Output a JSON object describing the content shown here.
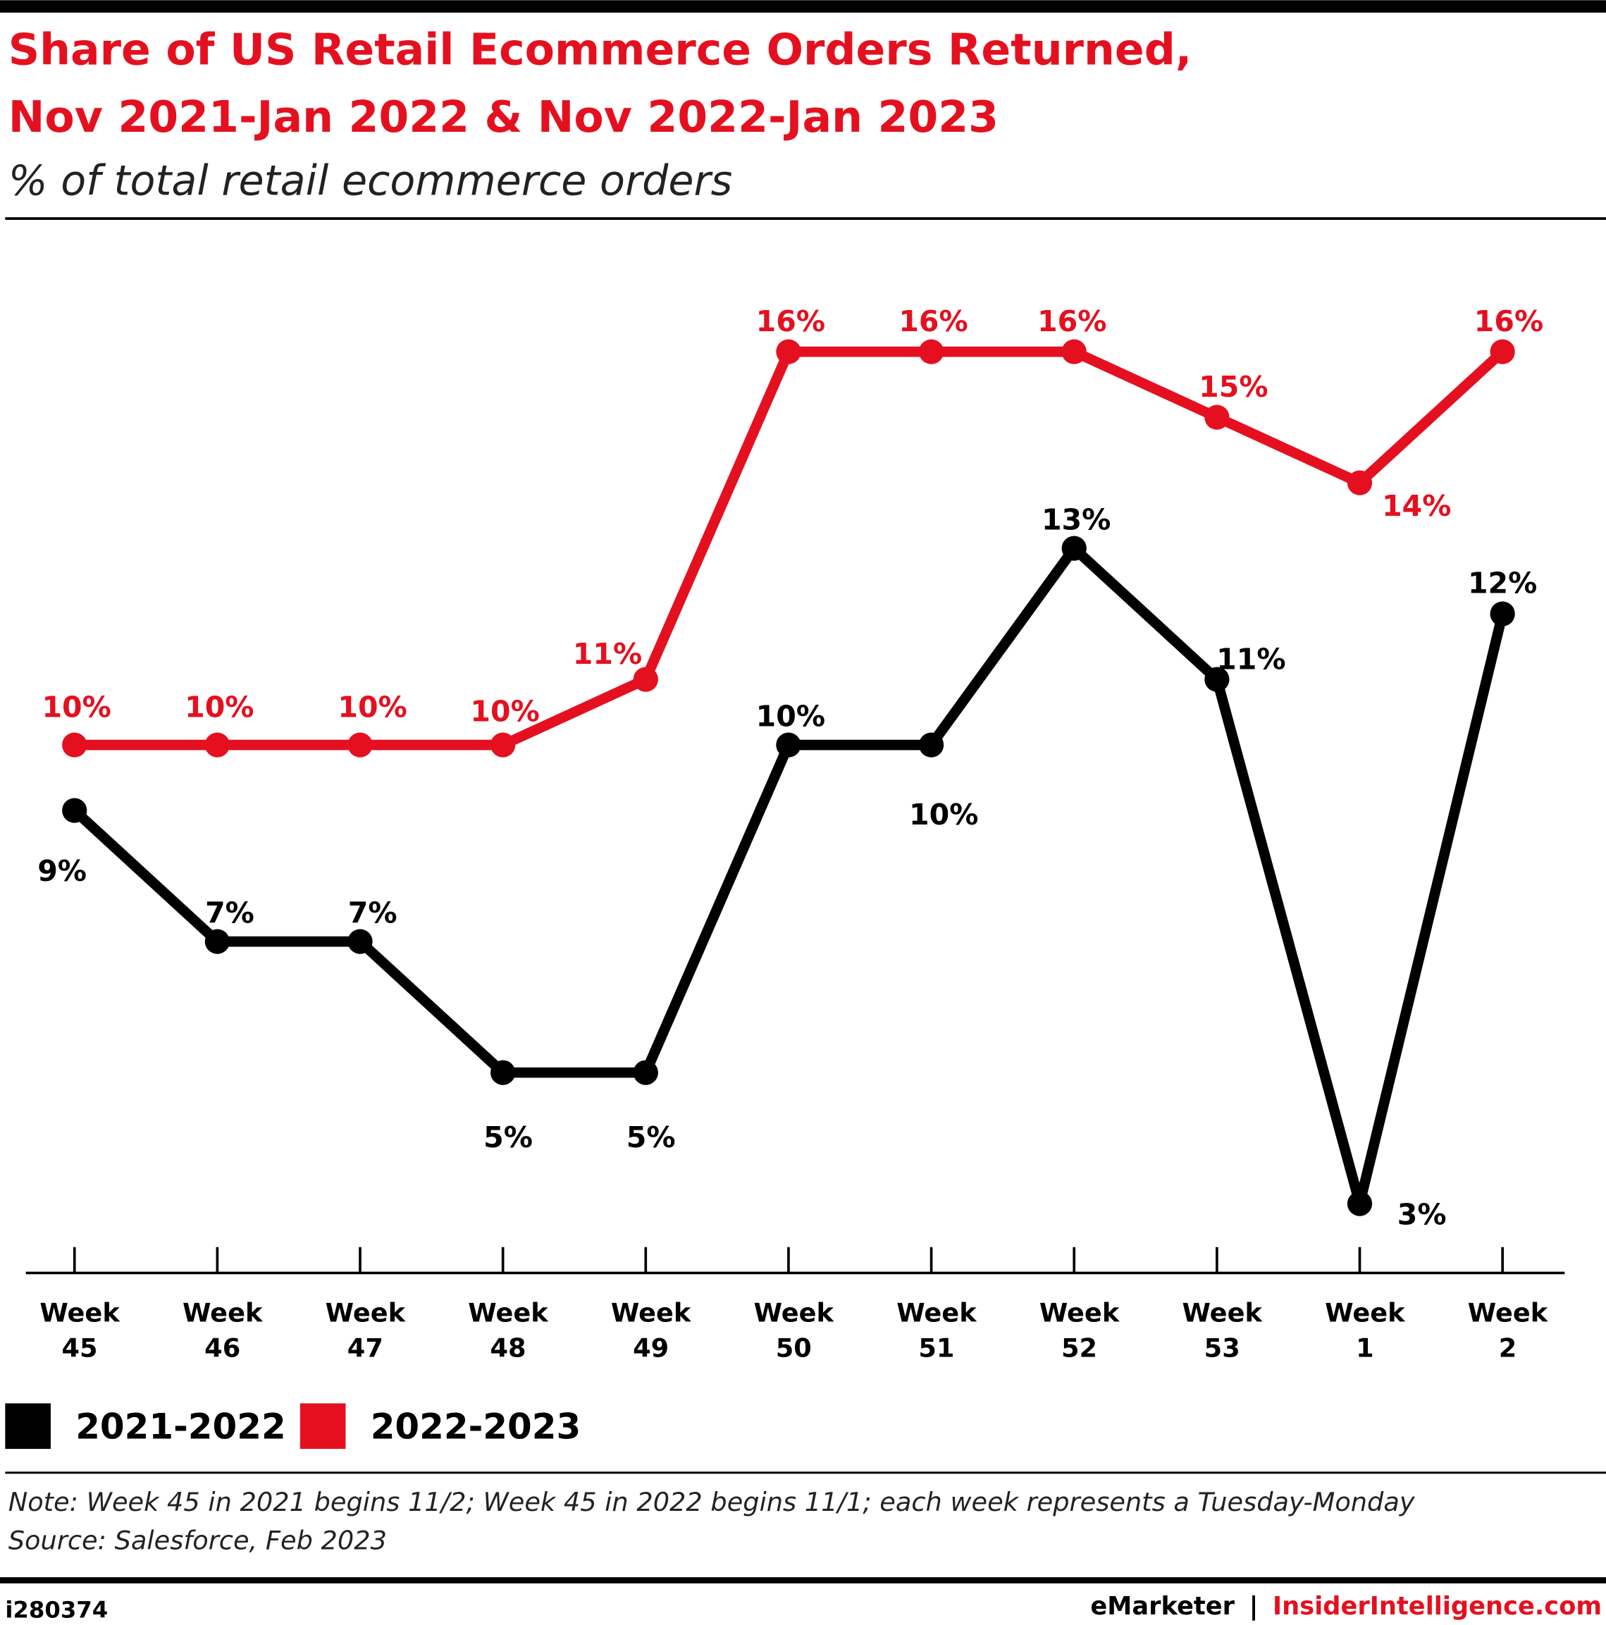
{
  "chart_data": {
    "type": "line",
    "title": [
      "Share of US Retail Ecommerce Orders Returned,",
      "Nov 2021-Jan 2022 & Nov 2022-Jan 2023"
    ],
    "subtitle": "% of total retail ecommerce orders",
    "categories": [
      "Week 45",
      "Week 46",
      "Week 47",
      "Week 48",
      "Week 49",
      "Week 50",
      "Week 51",
      "Week 52",
      "Week 53",
      "Week 1",
      "Week 2"
    ],
    "series": [
      {
        "name": "2021-2022",
        "color": "#000000",
        "values": [
          9,
          7,
          7,
          5,
          5,
          10,
          10,
          13,
          11,
          3,
          12
        ],
        "value_labels": [
          "9%",
          "7%",
          "7%",
          "5%",
          "5%",
          "10%",
          "10%",
          "13%",
          "11%",
          "3%",
          "12%"
        ]
      },
      {
        "name": "2022-2023",
        "color": "#e5101f",
        "values": [
          10,
          10,
          10,
          10,
          11,
          16,
          16,
          16,
          15,
          14,
          16
        ],
        "value_labels": [
          "10%",
          "10%",
          "10%",
          "10%",
          "11%",
          "16%",
          "16%",
          "16%",
          "15%",
          "14%",
          "16%"
        ]
      }
    ],
    "note": "Note: Week 45 in 2021 begins 11/2; Week 45 in 2022 begins 11/1; each week represents a Tuesday-Monday",
    "source": "Source: Salesforce, Feb 2023",
    "id": "i280374",
    "footer": {
      "brand": "eMarketer",
      "separator": "|",
      "site": "InsiderIntelligence.com"
    }
  }
}
